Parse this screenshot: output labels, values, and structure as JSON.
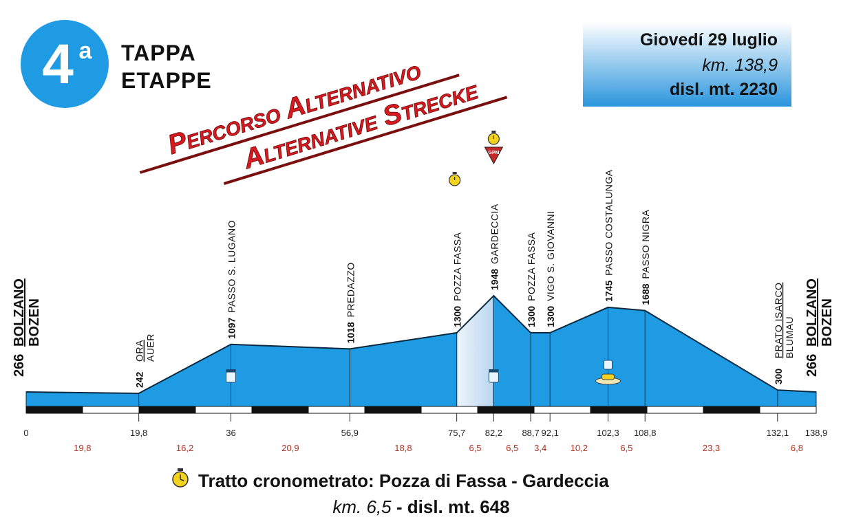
{
  "stage": {
    "number": "4",
    "superscript": "a",
    "line1": "TAPPA",
    "line2": "ETAPPE"
  },
  "banner": {
    "line1": "Percorso Alternativo",
    "line2": "Alternative Strecke"
  },
  "info_box": {
    "date": "Giovedí 29 luglio",
    "distance": "km. 138,9",
    "climb": "disl. mt. 2230"
  },
  "colors": {
    "profile_fill": "#1e9be3",
    "timed_fill": "#cfe3f5",
    "logo_circle": "#1e9be3",
    "banner_text": "#d71920",
    "segment_text": "#b03020",
    "info_box_top": "#ffffff",
    "info_box_bottom": "#2a95dd",
    "gpm_marker": "#c62828",
    "stopwatch": "#f2d21c"
  },
  "legend": {
    "title": "Tratto cronometrato: Pozza di Fassa - Gardeccia",
    "sub_km": "km. 6,5",
    "sub_sep": " - ",
    "sub_disl": "disl. mt. 648"
  },
  "chart_data": {
    "type": "area",
    "title": "",
    "xlabel": "",
    "ylabel": "",
    "x_unit": "km",
    "y_unit": "m",
    "xlim": [
      0,
      138.9
    ],
    "points": [
      {
        "km": 0,
        "alt": 266,
        "alt_label": "266",
        "name": "BOLZANO",
        "name2": "BOZEN",
        "km_label": "0",
        "endpoint": true
      },
      {
        "km": 19.8,
        "alt": 242,
        "alt_label": "242",
        "name": "ORA",
        "name2": "AUER",
        "km_label": "19,8"
      },
      {
        "km": 36,
        "alt": 1097,
        "alt_label": "1097",
        "name": "PASSO S. LUGANO",
        "km_label": "36"
      },
      {
        "km": 56.9,
        "alt": 1018,
        "alt_label": "1018",
        "name": "PREDAZZO",
        "km_label": "56,9"
      },
      {
        "km": 75.7,
        "alt": 1300,
        "alt_label": "1300",
        "name": "POZZA FASSA",
        "km_label": "75,7",
        "timed_start": true
      },
      {
        "km": 82.2,
        "alt": 1948,
        "alt_label": "1948",
        "name": "GARDECCIA",
        "km_label": "82,2",
        "gpm": true,
        "timed_end": true
      },
      {
        "km": 88.7,
        "alt": 1300,
        "alt_label": "1300",
        "name": "POZZA FASSA",
        "km_label": "88,7"
      },
      {
        "km": 92.1,
        "alt": 1300,
        "alt_label": "1300",
        "name": "VIGO S. GIOVANNI",
        "km_label": "92,1"
      },
      {
        "km": 102.3,
        "alt": 1745,
        "alt_label": "1745",
        "name": "PASSO COSTALUNGA",
        "km_label": "102,3"
      },
      {
        "km": 108.8,
        "alt": 1688,
        "alt_label": "1688",
        "name": "PASSO NIGRA",
        "km_label": "108,8"
      },
      {
        "km": 132.1,
        "alt": 300,
        "alt_label": "300",
        "name": "PRATO ISARCO",
        "name2": "BLUMAU",
        "km_label": "132,1"
      },
      {
        "km": 138.9,
        "alt": 266,
        "alt_label": "266",
        "name": "BOLZANO",
        "name2": "BOZEN",
        "km_label": "138,9",
        "endpoint": true
      }
    ],
    "segments": [
      "19,8",
      "16,2",
      "20,9",
      "18,8",
      "6,5",
      "6,5",
      "3,4",
      "10,2",
      "6,5",
      "23,3",
      "6,8"
    ],
    "timed_section_km": [
      75.7,
      82.2
    ],
    "feed_zone_km": [
      36,
      82.2
    ],
    "parking_km": 102.3
  }
}
